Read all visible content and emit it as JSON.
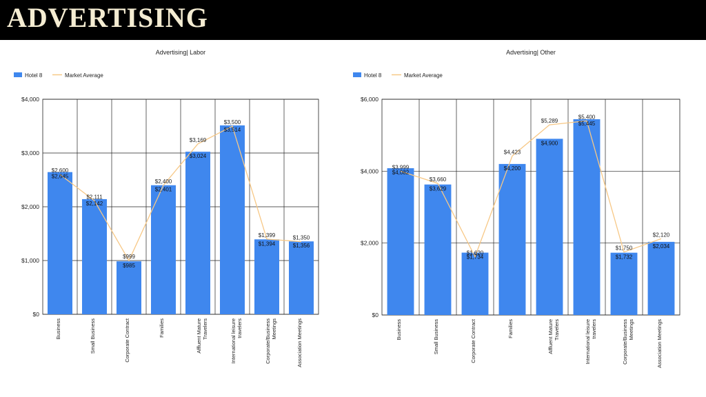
{
  "header": {
    "title": "ADVERTISING"
  },
  "colors": {
    "bar": "#3f87ee",
    "line": "#f7c886",
    "header_bg": "#000000",
    "title": "#f4ecd2"
  },
  "chart_data": [
    {
      "type": "bar",
      "title": "Advertising| Labor",
      "legend": {
        "placement": "top-left",
        "entries": [
          "Hotel 8",
          "Market Average"
        ]
      },
      "categories": [
        "Business",
        "Small Business",
        "Corporate Contract",
        "Families",
        "Affluent Mature Travelers",
        "International leisure travelers",
        "Corporate/Business Meetings",
        "Association Meetings"
      ],
      "series": [
        {
          "name": "Hotel 8",
          "type": "bar",
          "values": [
            2645,
            2142,
            985,
            2401,
            3024,
            3514,
            1394,
            1356
          ],
          "labels": [
            "$2,645",
            "$2,142",
            "$985",
            "$2,401",
            "$3,024",
            "$3,514",
            "$1,394",
            "$1,356"
          ]
        },
        {
          "name": "Market Average",
          "type": "line",
          "values": [
            2600,
            2111,
            999,
            2400,
            3169,
            3500,
            1399,
            1350
          ],
          "labels": [
            "$2,600",
            "$2,111",
            "$999",
            "$2,400",
            "$3,169",
            "$3,500",
            "$1,399",
            "$1,350"
          ]
        }
      ],
      "ylim": [
        0,
        4000
      ],
      "yticks": [
        0,
        1000,
        2000,
        3000,
        4000
      ],
      "ytick_labels": [
        "$0",
        "$1,000",
        "$2,000",
        "$3,000",
        "$4,000"
      ],
      "grid": true
    },
    {
      "type": "bar",
      "title": "Advertising| Other",
      "legend": {
        "placement": "top-left",
        "entries": [
          "Hotel 8",
          "Market Average"
        ]
      },
      "categories": [
        "Business",
        "Small Business",
        "Corporate Contract",
        "Families",
        "Affluent Mature Travelers",
        "International leisure travelers",
        "Corporate/Business Meetings",
        "Association Meetings"
      ],
      "series": [
        {
          "name": "Hotel 8",
          "type": "bar",
          "values": [
            4082,
            3629,
            1734,
            4200,
            4900,
            5445,
            1732,
            2034
          ],
          "labels": [
            "$4,082",
            "$3,629",
            "$1,734",
            "$4,200",
            "$4,900",
            "$5,445",
            "$1,732",
            "$2,034"
          ]
        },
        {
          "name": "Market Average",
          "type": "line",
          "values": [
            3999,
            3660,
            1620,
            4423,
            5289,
            5400,
            1750,
            2120
          ],
          "labels": [
            "$3,999",
            "$3,660",
            "$1,620",
            "$4,423",
            "$5,289",
            "$5,400",
            "$1,750",
            "$2,120"
          ]
        }
      ],
      "ylim": [
        0,
        6000
      ],
      "yticks": [
        0,
        2000,
        4000,
        6000
      ],
      "ytick_labels": [
        "$0",
        "$2,000",
        "$4,000",
        "$6,000"
      ],
      "grid": true
    }
  ]
}
